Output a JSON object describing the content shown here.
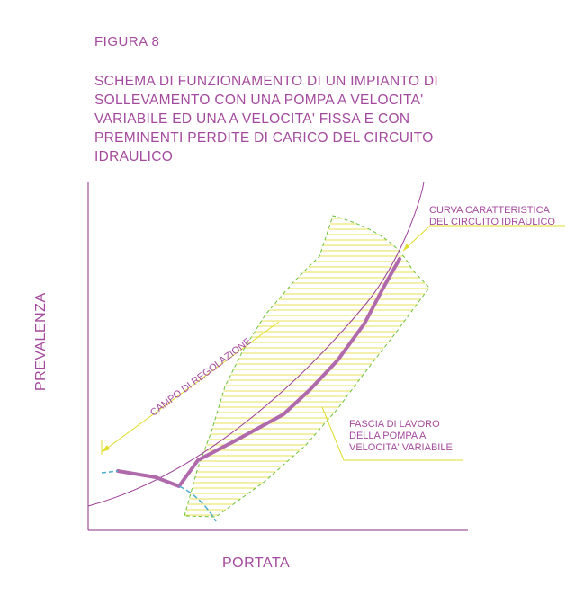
{
  "figure_label": "FIGURA    8",
  "title_lines": [
    "SCHEMA DI FUNZIONAMENTO DI UN IMPIANTO DI",
    "SOLLEVAMENTO CON UNA POMPA A VELOCITA'",
    "VARIABILE ED UNA A VELOCITA' FISSA E CON",
    "PREMINENTI PERDITE DI CARICO DEL CIRCUITO",
    "IDRAULICO"
  ],
  "axis": {
    "y_label": "PREVALENZA",
    "x_label": "PORTATA"
  },
  "annotations": {
    "curva": [
      "CURVA CARATTERISTICA",
      "DEL CIRCUITO IDRAULICO"
    ],
    "campo": "CAMPO DI REGOLAZIONE",
    "fascia": [
      "FASCIA DI LAVORO",
      "DELLA POMPA A",
      "VELOCITA' VARIABILE"
    ]
  },
  "colors": {
    "text": "#a44a9e",
    "axis": "#8a2f86",
    "curve": "#9b3d97",
    "operating_line": "#b06aac",
    "band_fill": "#e8e05a",
    "band_border": "#6ac23a",
    "leader": "#e0dc2a",
    "cyan": "#4aaccc"
  }
}
